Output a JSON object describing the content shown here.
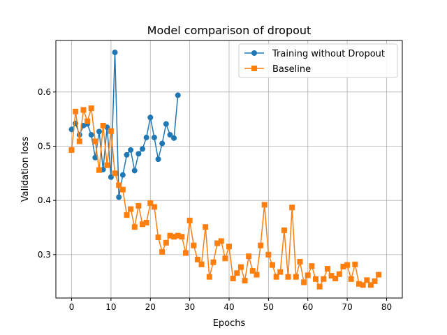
{
  "chart_data": {
    "type": "line",
    "title": "Model comparison of dropout",
    "xlabel": "Epochs",
    "ylabel": "Validation loss",
    "xlim": [
      -4,
      84
    ],
    "ylim": [
      0.22,
      0.695
    ],
    "xticks": [
      0,
      10,
      20,
      30,
      40,
      50,
      60,
      70,
      80
    ],
    "yticks": [
      0.3,
      0.4,
      0.5,
      0.6
    ],
    "grid": true,
    "legend_position": "top-right",
    "series": [
      {
        "name": "Training without Dropout",
        "color": "#1f77b4",
        "marker": "circle",
        "x": [
          0,
          1,
          2,
          3,
          4,
          5,
          6,
          7,
          8,
          9,
          10,
          11,
          12,
          13,
          14,
          15,
          16,
          17,
          18,
          19,
          20,
          21,
          22,
          23,
          24,
          25,
          26,
          27
        ],
        "values": [
          0.531,
          0.542,
          0.521,
          0.538,
          0.541,
          0.521,
          0.479,
          0.527,
          0.457,
          0.535,
          0.443,
          0.673,
          0.406,
          0.447,
          0.484,
          0.493,
          0.455,
          0.486,
          0.495,
          0.516,
          0.553,
          0.516,
          0.476,
          0.505,
          0.541,
          0.521,
          0.515,
          0.594
        ]
      },
      {
        "name": "Baseline",
        "color": "#ff7f0e",
        "marker": "square",
        "x": [
          0,
          1,
          2,
          3,
          4,
          5,
          6,
          7,
          8,
          9,
          10,
          11,
          12,
          13,
          14,
          15,
          16,
          17,
          18,
          19,
          20,
          21,
          22,
          23,
          24,
          25,
          26,
          27,
          28,
          29,
          30,
          31,
          32,
          33,
          34,
          35,
          36,
          37,
          38,
          39,
          40,
          41,
          42,
          43,
          44,
          45,
          46,
          47,
          48,
          49,
          50,
          51,
          52,
          53,
          54,
          55,
          56,
          57,
          58,
          59,
          60,
          61,
          62,
          63,
          64,
          65,
          66,
          67,
          68,
          69,
          70,
          71,
          72,
          73,
          74,
          75,
          76,
          77,
          78
        ],
        "values": [
          0.493,
          0.564,
          0.509,
          0.567,
          0.546,
          0.57,
          0.509,
          0.456,
          0.538,
          0.465,
          0.528,
          0.45,
          0.428,
          0.42,
          0.373,
          0.384,
          0.351,
          0.39,
          0.356,
          0.359,
          0.395,
          0.388,
          0.332,
          0.305,
          0.322,
          0.335,
          0.333,
          0.335,
          0.333,
          0.303,
          0.363,
          0.317,
          0.291,
          0.282,
          0.351,
          0.259,
          0.286,
          0.321,
          0.325,
          0.293,
          0.315,
          0.256,
          0.266,
          0.277,
          0.252,
          0.297,
          0.27,
          0.263,
          0.317,
          0.392,
          0.3,
          0.281,
          0.259,
          0.268,
          0.345,
          0.259,
          0.387,
          0.259,
          0.287,
          0.249,
          0.262,
          0.279,
          0.255,
          0.241,
          0.255,
          0.274,
          0.261,
          0.256,
          0.264,
          0.278,
          0.281,
          0.255,
          0.282,
          0.246,
          0.244,
          0.253,
          0.244,
          0.251,
          0.263
        ]
      }
    ]
  }
}
